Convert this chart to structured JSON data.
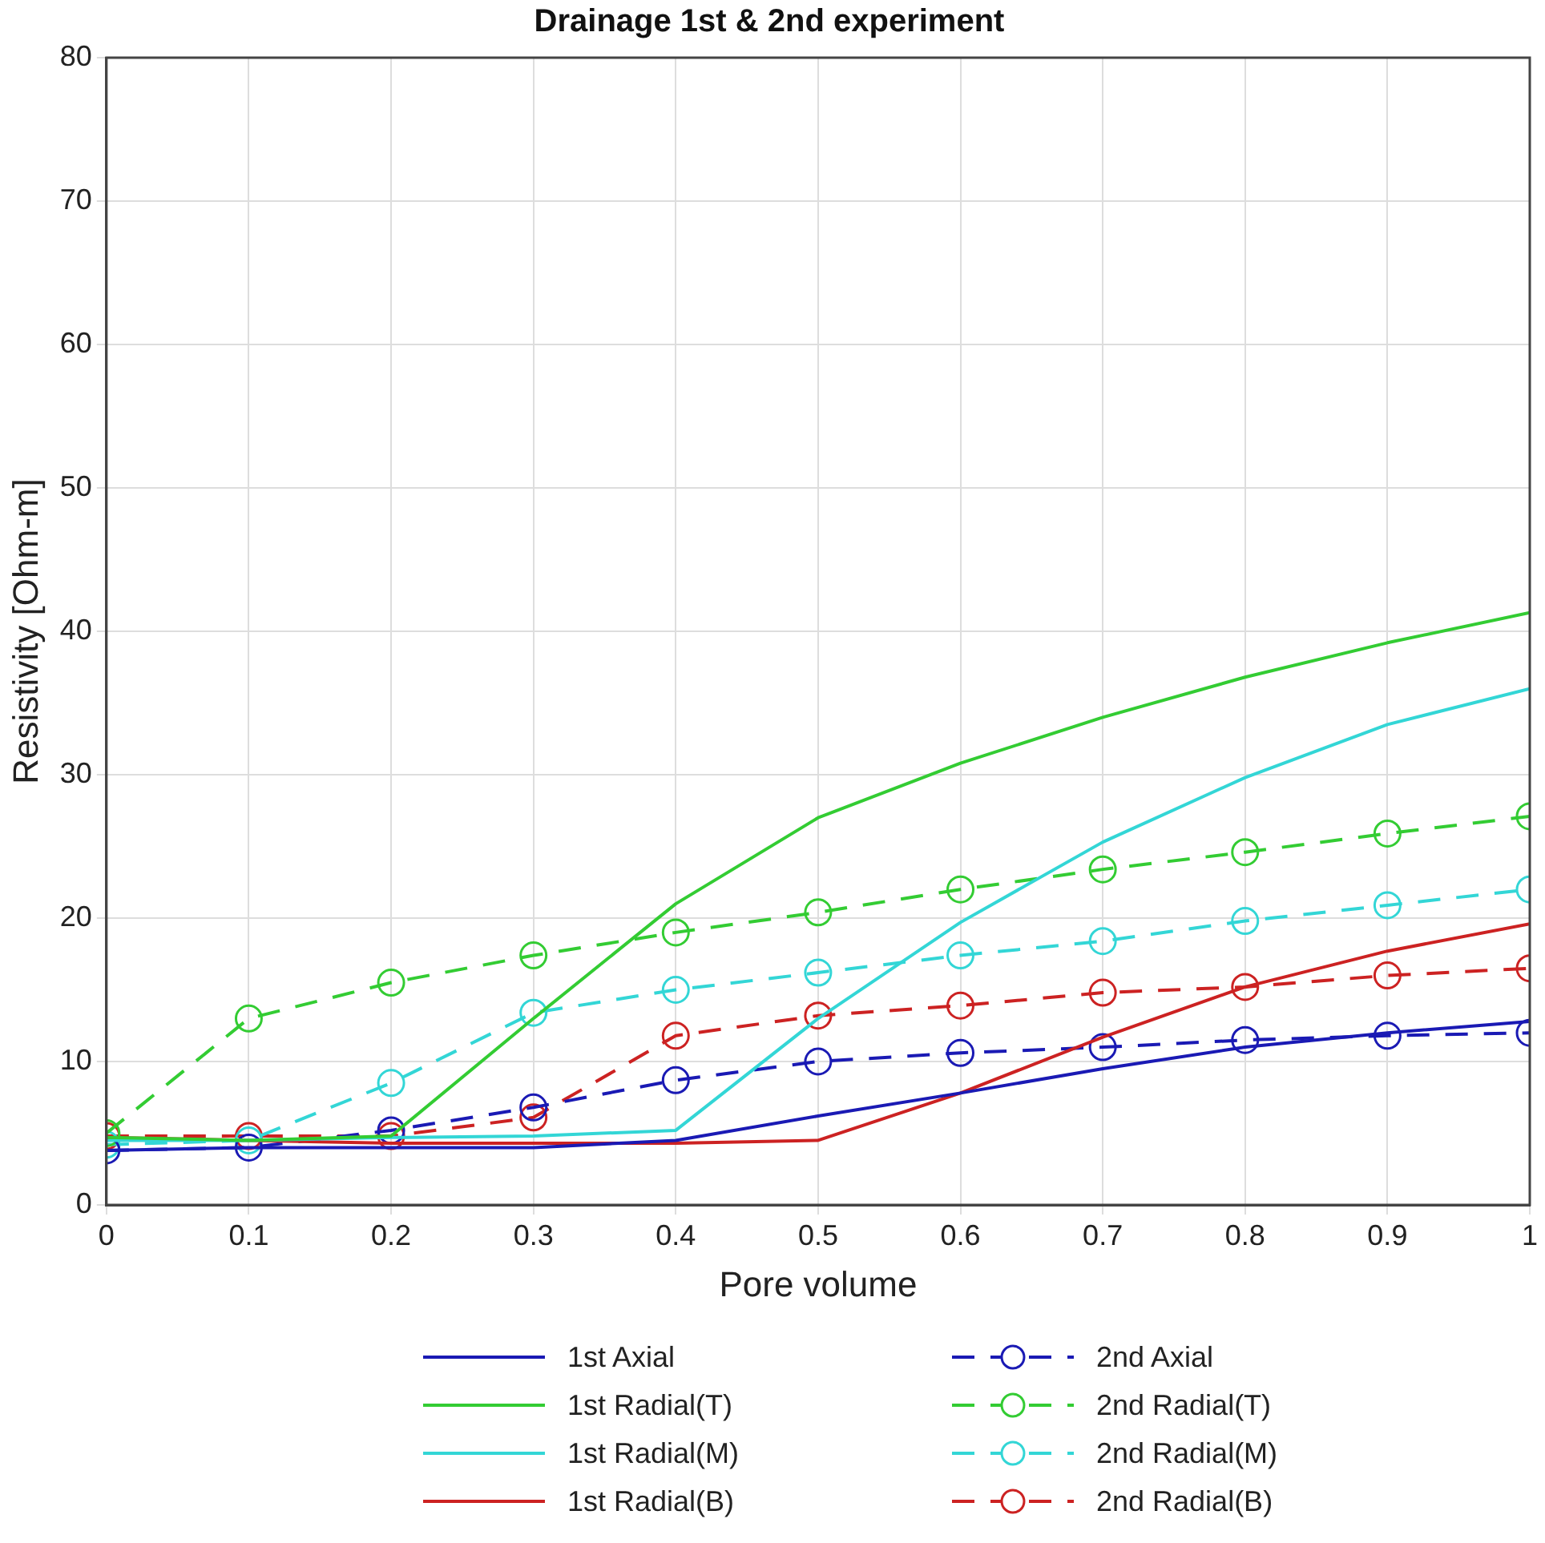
{
  "chart_data": {
    "type": "line",
    "title": "Drainage 1st & 2nd experiment",
    "xlabel": "Pore volume",
    "ylabel": "Resistivity [Ohm-m]",
    "x": [
      0,
      0.1,
      0.2,
      0.3,
      0.4,
      0.5,
      0.6,
      0.7,
      0.8,
      0.9,
      1
    ],
    "xlim": [
      0,
      1
    ],
    "xticks": [
      0,
      0.1,
      0.2,
      0.3,
      0.4,
      0.5,
      0.6,
      0.7,
      0.8,
      0.9,
      1
    ],
    "ylim": [
      0,
      80
    ],
    "yticks": [
      0,
      10,
      20,
      30,
      40,
      50,
      60,
      70,
      80
    ],
    "grid": true,
    "legend": "bottom",
    "series": [
      {
        "name": "1st Axial",
        "color": "#1a1ab4",
        "line_style": "solid",
        "marker": "none",
        "values": [
          3.8,
          4.0,
          4.0,
          4.0,
          4.5,
          6.2,
          7.8,
          9.5,
          11.0,
          12.0,
          12.8
        ]
      },
      {
        "name": "1st Radial(T)",
        "color": "#33cc33",
        "line_style": "solid",
        "marker": "none",
        "values": [
          4.7,
          4.5,
          4.8,
          13.0,
          21.0,
          27.0,
          30.8,
          34.0,
          36.8,
          39.2,
          41.3
        ]
      },
      {
        "name": "1st Radial(M)",
        "color": "#33d6d6",
        "line_style": "solid",
        "marker": "none",
        "values": [
          4.5,
          4.5,
          4.7,
          4.8,
          5.2,
          13.0,
          19.7,
          25.3,
          29.8,
          33.5,
          36.0
        ]
      },
      {
        "name": "1st  Radial(B)",
        "color": "#cc2222",
        "line_style": "solid",
        "marker": "none",
        "values": [
          4.7,
          4.5,
          4.3,
          4.3,
          4.3,
          4.5,
          7.8,
          11.7,
          15.2,
          17.7,
          19.6
        ]
      },
      {
        "name": "2nd Axial",
        "color": "#1a1ab4",
        "line_style": "dashed",
        "marker": "circle",
        "values": [
          3.8,
          4.0,
          5.2,
          6.8,
          8.7,
          10.0,
          10.6,
          11.0,
          11.5,
          11.8,
          12.0
        ]
      },
      {
        "name": "2nd Radial(T)",
        "color": "#33cc33",
        "line_style": "dashed",
        "marker": "circle",
        "values": [
          5.0,
          13.0,
          15.5,
          17.4,
          19.0,
          20.4,
          22.0,
          23.4,
          24.6,
          25.9,
          27.1
        ]
      },
      {
        "name": "2nd Radial(M)",
        "color": "#33d6d6",
        "line_style": "dashed",
        "marker": "circle",
        "values": [
          4.2,
          4.5,
          8.5,
          13.4,
          15.0,
          16.2,
          17.4,
          18.4,
          19.8,
          20.9,
          22.0
        ]
      },
      {
        "name": "2nd Radial(B)",
        "color": "#cc2222",
        "line_style": "dashed",
        "marker": "circle",
        "values": [
          4.8,
          4.8,
          4.8,
          6.1,
          11.8,
          13.2,
          13.9,
          14.8,
          15.2,
          16.0,
          16.5
        ]
      }
    ]
  }
}
